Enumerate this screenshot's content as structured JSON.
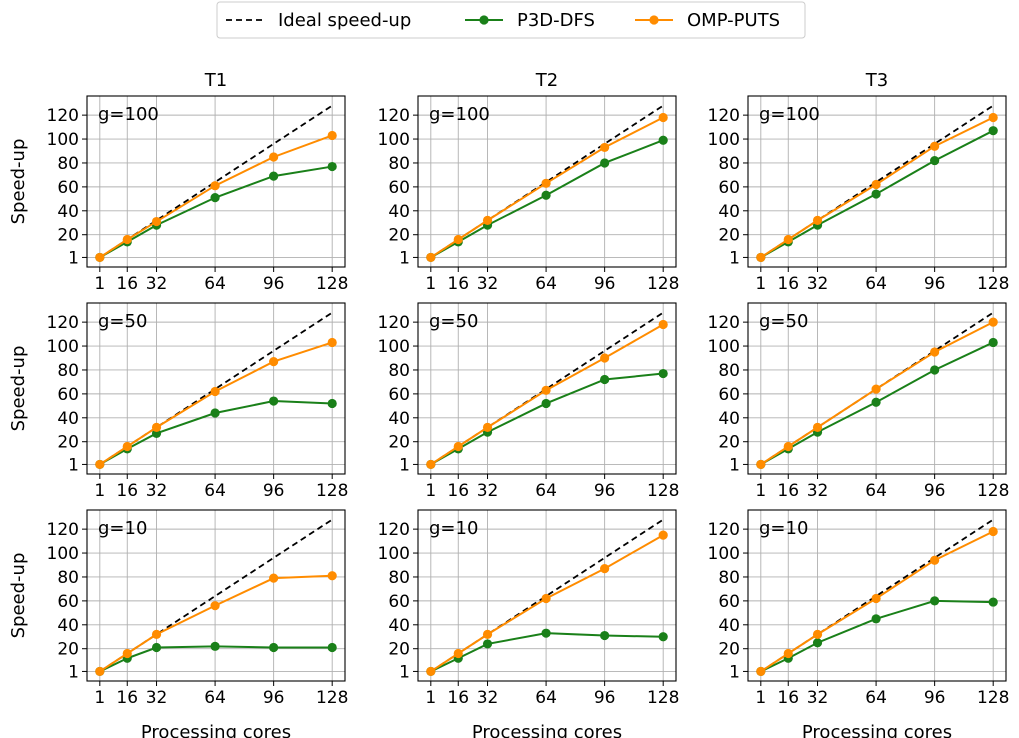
{
  "chart_data": {
    "type": "line",
    "columns": [
      "T1",
      "T2",
      "T3"
    ],
    "rows": [
      "g=100",
      "g=50",
      "g=10"
    ],
    "xlabel": "Processing cores",
    "ylabel": "Speed-up",
    "x": [
      1,
      16,
      32,
      64,
      96,
      128
    ],
    "x_ticks": [
      1,
      16,
      32,
      64,
      96,
      128
    ],
    "y_ticks": [
      1,
      20,
      40,
      60,
      80,
      100,
      120
    ],
    "xlim": [
      -6,
      135
    ],
    "ylim": [
      -7,
      136
    ],
    "grid": true,
    "legend_position": "top-center",
    "legend": [
      {
        "name": "Ideal speed-up",
        "color": "#000000",
        "style": "dashed",
        "marker": "none"
      },
      {
        "name": "P3D-DFS",
        "color": "#1a8019",
        "style": "solid",
        "marker": "circle"
      },
      {
        "name": "OMP-PUTS",
        "color": "#ff8c00",
        "style": "solid",
        "marker": "circle"
      }
    ],
    "panels": [
      {
        "column": "T1",
        "row": "g=100",
        "annotation": "g=100",
        "series": [
          {
            "name": "Ideal speed-up",
            "values": [
              1,
              16,
              32,
              64,
              96,
              128
            ]
          },
          {
            "name": "P3D-DFS",
            "values": [
              1,
              14,
              28,
              51,
              69,
              77
            ]
          },
          {
            "name": "OMP-PUTS",
            "values": [
              1,
              16,
              31,
              61,
              85,
              103
            ]
          }
        ]
      },
      {
        "column": "T2",
        "row": "g=100",
        "annotation": "g=100",
        "series": [
          {
            "name": "Ideal speed-up",
            "values": [
              1,
              16,
              32,
              64,
              96,
              128
            ]
          },
          {
            "name": "P3D-DFS",
            "values": [
              1,
              14,
              28,
              53,
              80,
              99
            ]
          },
          {
            "name": "OMP-PUTS",
            "values": [
              1,
              16,
              32,
              63,
              93,
              118
            ]
          }
        ]
      },
      {
        "column": "T3",
        "row": "g=100",
        "annotation": "g=100",
        "series": [
          {
            "name": "Ideal speed-up",
            "values": [
              1,
              16,
              32,
              64,
              96,
              128
            ]
          },
          {
            "name": "P3D-DFS",
            "values": [
              1,
              14,
              28,
              54,
              82,
              107
            ]
          },
          {
            "name": "OMP-PUTS",
            "values": [
              1,
              16,
              32,
              62,
              94,
              118
            ]
          }
        ]
      },
      {
        "column": "T1",
        "row": "g=50",
        "annotation": "g=50",
        "series": [
          {
            "name": "Ideal speed-up",
            "values": [
              1,
              16,
              32,
              64,
              96,
              128
            ]
          },
          {
            "name": "P3D-DFS",
            "values": [
              1,
              14,
              27,
              44,
              54,
              52
            ]
          },
          {
            "name": "OMP-PUTS",
            "values": [
              1,
              16,
              32,
              62,
              87,
              103
            ]
          }
        ]
      },
      {
        "column": "T2",
        "row": "g=50",
        "annotation": "g=50",
        "series": [
          {
            "name": "Ideal speed-up",
            "values": [
              1,
              16,
              32,
              64,
              96,
              128
            ]
          },
          {
            "name": "P3D-DFS",
            "values": [
              1,
              14,
              28,
              52,
              72,
              77
            ]
          },
          {
            "name": "OMP-PUTS",
            "values": [
              1,
              16,
              32,
              63,
              90,
              118
            ]
          }
        ]
      },
      {
        "column": "T3",
        "row": "g=50",
        "annotation": "g=50",
        "series": [
          {
            "name": "Ideal speed-up",
            "values": [
              1,
              16,
              32,
              64,
              96,
              128
            ]
          },
          {
            "name": "P3D-DFS",
            "values": [
              1,
              14,
              28,
              53,
              80,
              103
            ]
          },
          {
            "name": "OMP-PUTS",
            "values": [
              1,
              16,
              32,
              64,
              95,
              120
            ]
          }
        ]
      },
      {
        "column": "T1",
        "row": "g=10",
        "annotation": "g=10",
        "series": [
          {
            "name": "Ideal speed-up",
            "values": [
              1,
              16,
              32,
              64,
              96,
              128
            ]
          },
          {
            "name": "P3D-DFS",
            "values": [
              1,
              12,
              21,
              22,
              21,
              21
            ]
          },
          {
            "name": "OMP-PUTS",
            "values": [
              1,
              16,
              32,
              56,
              79,
              81
            ]
          }
        ]
      },
      {
        "column": "T2",
        "row": "g=10",
        "annotation": "g=10",
        "series": [
          {
            "name": "Ideal speed-up",
            "values": [
              1,
              16,
              32,
              64,
              96,
              128
            ]
          },
          {
            "name": "P3D-DFS",
            "values": [
              1,
              12,
              24,
              33,
              31,
              30
            ]
          },
          {
            "name": "OMP-PUTS",
            "values": [
              1,
              16,
              32,
              62,
              87,
              115
            ]
          }
        ]
      },
      {
        "column": "T3",
        "row": "g=10",
        "annotation": "g=10",
        "series": [
          {
            "name": "Ideal speed-up",
            "values": [
              1,
              16,
              32,
              64,
              96,
              128
            ]
          },
          {
            "name": "P3D-DFS",
            "values": [
              1,
              12,
              25,
              45,
              60,
              59
            ]
          },
          {
            "name": "OMP-PUTS",
            "values": [
              1,
              16,
              32,
              62,
              94,
              118
            ]
          }
        ]
      }
    ]
  }
}
